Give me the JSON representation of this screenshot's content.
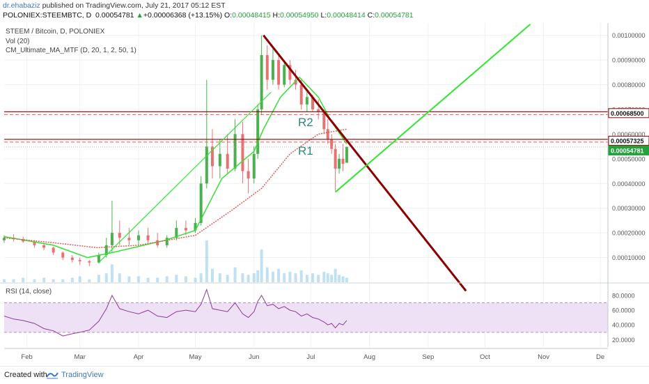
{
  "header": {
    "author": "dr.ehabaziz",
    "published_text": " published on TradingView.com, July 21, 2017 05:12 EST",
    "symbol_line": "POLONIEX:STEEMBTC, D",
    "last_price": "0.00054781",
    "change_arrow": "▲",
    "change": "+0.00006368 (+13.15%)",
    "o_label": "O:",
    "o_value": "0.00048415",
    "h_label": "H:",
    "h_value": "0.00054950",
    "l_label": "L:",
    "l_value": "0.00048414",
    "c_label": "C:",
    "c_value": "0.00054781"
  },
  "legend": {
    "title": "STEEM / Bitcoin, D, POLONIEX",
    "vol": "Vol (20)",
    "indicator": "CM_Ultimate_MA_MTF (D, 20, 1, 2, 50, 1)"
  },
  "rsi_legend": "RSI (14, close)",
  "footer": {
    "created": "Created with",
    "brand": "TradingView"
  },
  "colors": {
    "up_candle": "#4caf50",
    "down_candle": "#e57373",
    "sma20": "#33e033",
    "ma50": "#e05a5a",
    "trend_red": "#8b0000",
    "trend_green": "#2ee62e",
    "volume": "#8ec9ea",
    "rsi_line": "#8e3a97",
    "rsi_band": "#efe1f5",
    "resistance": "#8b0000",
    "label": "#2e8b7a"
  },
  "chart_data": [
    {
      "type": "candlestick",
      "title": "STEEM / Bitcoin, D, POLONIEX",
      "y_axis_scale": "linear",
      "ylim": [
        0,
        0.00105
      ],
      "y_ticks": [
        "0.00010000",
        "0.00020000",
        "0.00030000",
        "0.00040000",
        "0.00050000",
        "0.00060000",
        "0.00070000",
        "0.00080000",
        "0.00090000",
        "0.00100000"
      ],
      "x_ticks": [
        "Feb",
        "Mar",
        "Apr",
        "May",
        "Jun",
        "Jul",
        "Aug",
        "Sep",
        "Oct",
        "Nov",
        "De"
      ],
      "x_range": [
        "2017-01-20",
        "2017-12-05"
      ],
      "x_tick_dates": [
        "2017-02-01",
        "2017-03-01",
        "2017-04-01",
        "2017-05-01",
        "2017-06-01",
        "2017-07-01",
        "2017-08-01",
        "2017-09-01",
        "2017-10-01",
        "2017-11-01",
        "2017-12-01"
      ],
      "candles": [
        {
          "date": "2017-01-20",
          "o": 0.00017,
          "h": 0.00019,
          "l": 0.00016,
          "c": 0.00018
        },
        {
          "date": "2017-01-25",
          "o": 0.00018,
          "h": 0.000195,
          "l": 0.000165,
          "c": 0.000175
        },
        {
          "date": "2017-01-30",
          "o": 0.000175,
          "h": 0.000185,
          "l": 0.00016,
          "c": 0.000165
        },
        {
          "date": "2017-02-05",
          "o": 0.000165,
          "h": 0.00017,
          "l": 0.00014,
          "c": 0.00015
        },
        {
          "date": "2017-02-10",
          "o": 0.00015,
          "h": 0.00016,
          "l": 0.00013,
          "c": 0.00014
        },
        {
          "date": "2017-02-15",
          "o": 0.00014,
          "h": 0.000145,
          "l": 0.00011,
          "c": 0.00012
        },
        {
          "date": "2017-02-20",
          "o": 0.00012,
          "h": 0.000125,
          "l": 9e-05,
          "c": 0.0001
        },
        {
          "date": "2017-02-25",
          "o": 0.0001,
          "h": 0.00011,
          "l": 8e-05,
          "c": 9e-05
        },
        {
          "date": "2017-03-01",
          "o": 9e-05,
          "h": 0.0001,
          "l": 7e-05,
          "c": 8.5e-05
        },
        {
          "date": "2017-03-06",
          "o": 8.5e-05,
          "h": 9e-05,
          "l": 6.5e-05,
          "c": 8e-05
        },
        {
          "date": "2017-03-11",
          "o": 8e-05,
          "h": 0.00012,
          "l": 7.5e-05,
          "c": 0.00011
        },
        {
          "date": "2017-03-15",
          "o": 0.00011,
          "h": 0.00018,
          "l": 0.0001,
          "c": 0.00015
        },
        {
          "date": "2017-03-18",
          "o": 0.00015,
          "h": 0.00033,
          "l": 0.00012,
          "c": 0.0002
        },
        {
          "date": "2017-03-22",
          "o": 0.0002,
          "h": 0.00025,
          "l": 0.00015,
          "c": 0.00018
        },
        {
          "date": "2017-03-27",
          "o": 0.00018,
          "h": 0.00022,
          "l": 0.00015,
          "c": 0.00017
        },
        {
          "date": "2017-04-01",
          "o": 0.00017,
          "h": 0.00021,
          "l": 0.00015,
          "c": 0.00019
        },
        {
          "date": "2017-04-06",
          "o": 0.00019,
          "h": 0.00022,
          "l": 0.00016,
          "c": 0.00017
        },
        {
          "date": "2017-04-11",
          "o": 0.00017,
          "h": 0.0002,
          "l": 0.00014,
          "c": 0.00015
        },
        {
          "date": "2017-04-16",
          "o": 0.00015,
          "h": 0.00019,
          "l": 0.00014,
          "c": 0.00018
        },
        {
          "date": "2017-04-21",
          "o": 0.00018,
          "h": 0.00025,
          "l": 0.00017,
          "c": 0.00022
        },
        {
          "date": "2017-04-26",
          "o": 0.00022,
          "h": 0.00025,
          "l": 0.00019,
          "c": 0.00021
        },
        {
          "date": "2017-05-01",
          "o": 0.00021,
          "h": 0.00026,
          "l": 0.0002,
          "c": 0.00024
        },
        {
          "date": "2017-05-04",
          "o": 0.00024,
          "h": 0.00043,
          "l": 0.00023,
          "c": 0.0004
        },
        {
          "date": "2017-05-07",
          "o": 0.0004,
          "h": 0.00082,
          "l": 0.00038,
          "c": 0.00055
        },
        {
          "date": "2017-05-10",
          "o": 0.00055,
          "h": 0.00062,
          "l": 0.00042,
          "c": 0.00047
        },
        {
          "date": "2017-05-14",
          "o": 0.00047,
          "h": 0.00058,
          "l": 0.00042,
          "c": 0.00052
        },
        {
          "date": "2017-05-18",
          "o": 0.00052,
          "h": 0.0006,
          "l": 0.00044,
          "c": 0.00046
        },
        {
          "date": "2017-05-22",
          "o": 0.00046,
          "h": 0.00066,
          "l": 0.00045,
          "c": 0.0006
        },
        {
          "date": "2017-05-26",
          "o": 0.0006,
          "h": 0.00065,
          "l": 0.0004,
          "c": 0.00045
        },
        {
          "date": "2017-05-29",
          "o": 0.00045,
          "h": 0.0005,
          "l": 0.00036,
          "c": 0.00042
        },
        {
          "date": "2017-06-01",
          "o": 0.00042,
          "h": 0.00055,
          "l": 0.0004,
          "c": 0.00052
        },
        {
          "date": "2017-06-03",
          "o": 0.00052,
          "h": 0.00072,
          "l": 0.0005,
          "c": 0.0007
        },
        {
          "date": "2017-06-05",
          "o": 0.0007,
          "h": 0.001,
          "l": 0.00068,
          "c": 0.00092
        },
        {
          "date": "2017-06-08",
          "o": 0.00092,
          "h": 0.00096,
          "l": 0.00078,
          "c": 0.00082
        },
        {
          "date": "2017-06-11",
          "o": 0.00082,
          "h": 0.00095,
          "l": 0.0008,
          "c": 0.0009
        },
        {
          "date": "2017-06-14",
          "o": 0.0009,
          "h": 0.00092,
          "l": 0.00078,
          "c": 0.0008
        },
        {
          "date": "2017-06-17",
          "o": 0.0008,
          "h": 0.0009,
          "l": 0.00079,
          "c": 0.00088
        },
        {
          "date": "2017-06-20",
          "o": 0.00088,
          "h": 0.0009,
          "l": 0.0008,
          "c": 0.00082
        },
        {
          "date": "2017-06-23",
          "o": 0.00082,
          "h": 0.00086,
          "l": 0.00078,
          "c": 0.0008
        },
        {
          "date": "2017-06-26",
          "o": 0.0008,
          "h": 0.00082,
          "l": 0.0007,
          "c": 0.00072
        },
        {
          "date": "2017-06-29",
          "o": 0.00072,
          "h": 0.00078,
          "l": 0.00069,
          "c": 0.00075
        },
        {
          "date": "2017-07-02",
          "o": 0.00075,
          "h": 0.00076,
          "l": 0.00069,
          "c": 0.0007
        },
        {
          "date": "2017-07-05",
          "o": 0.0007,
          "h": 0.00074,
          "l": 0.00066,
          "c": 0.00069
        },
        {
          "date": "2017-07-08",
          "o": 0.00069,
          "h": 0.0007,
          "l": 0.0006,
          "c": 0.00062
        },
        {
          "date": "2017-07-10",
          "o": 0.00062,
          "h": 0.00066,
          "l": 0.00056,
          "c": 0.00058
        },
        {
          "date": "2017-07-12",
          "o": 0.00058,
          "h": 0.0006,
          "l": 0.00052,
          "c": 0.00054
        },
        {
          "date": "2017-07-14",
          "o": 0.00054,
          "h": 0.00056,
          "l": 0.00037,
          "c": 0.00046
        },
        {
          "date": "2017-07-16",
          "o": 0.00046,
          "h": 0.00052,
          "l": 0.00044,
          "c": 0.0005
        },
        {
          "date": "2017-07-18",
          "o": 0.0005,
          "h": 0.00056,
          "l": 0.00045,
          "c": 0.00048
        },
        {
          "date": "2017-07-20",
          "o": 0.000484,
          "h": 0.00055,
          "l": 0.000484,
          "c": 0.000548
        }
      ],
      "moving_averages": [
        {
          "points": [
            [
              "2017-01-20",
              0.000185
            ],
            [
              "2017-02-15",
              0.00015
            ],
            [
              "2017-03-05",
              0.0001
            ],
            [
              "2017-03-18",
              0.00012
            ],
            [
              "2017-04-15",
              0.00017
            ],
            [
              "2017-05-01",
              0.00021
            ],
            [
              "2017-05-07",
              0.0003
            ],
            [
              "2017-05-15",
              0.00042
            ],
            [
              "2017-06-01",
              0.00053
            ],
            [
              "2017-06-06",
              0.00062
            ],
            [
              "2017-06-15",
              0.00075
            ],
            [
              "2017-06-25",
              0.00083
            ],
            [
              "2017-07-05",
              0.00075
            ],
            [
              "2017-07-12",
              0.00065
            ],
            [
              "2017-07-20",
              0.00056
            ]
          ]
        },
        {
          "points": [
            [
              "2017-01-20",
              0.00018
            ],
            [
              "2017-02-15",
              0.00016
            ],
            [
              "2017-03-10",
              0.00014
            ],
            [
              "2017-04-01",
              0.00015
            ],
            [
              "2017-05-01",
              0.00019
            ],
            [
              "2017-05-20",
              0.00029
            ],
            [
              "2017-06-05",
              0.00038
            ],
            [
              "2017-06-20",
              0.00052
            ],
            [
              "2017-07-05",
              0.0006
            ],
            [
              "2017-07-20",
              0.00062
            ]
          ]
        }
      ],
      "volume": [
        2,
        2,
        3,
        2,
        3,
        2,
        2,
        3,
        4,
        2,
        5,
        6,
        12,
        6,
        4,
        4,
        3,
        3,
        4,
        5,
        4,
        3,
        6,
        28,
        9,
        6,
        5,
        10,
        6,
        5,
        6,
        8,
        22,
        10,
        7,
        9,
        6,
        7,
        6,
        8,
        5,
        6,
        5,
        7,
        6,
        5,
        9,
        5,
        4,
        3
      ],
      "horizontal_levels": [
        0.000685,
        0.0005732
      ],
      "price_labels": [
        "0.00068500",
        "0.00057325",
        "0.00054781"
      ],
      "annotations": [
        "R2",
        "R1"
      ],
      "trendlines": [
        {
          "from": [
            "2017-06-06",
            0.001
          ],
          "to": [
            "2017-09-21",
            -3.5e-05
          ]
        },
        {
          "from": [
            "2017-07-14",
            0.000365
          ],
          "to": [
            "2017-10-25",
            0.001045
          ]
        },
        {
          "from": [
            "2017-03-11",
            8e-05
          ],
          "to": [
            "2017-06-10",
            0.00077
          ]
        }
      ]
    },
    {
      "type": "line",
      "title": "RSI (14, close)",
      "ylim": [
        10,
        95
      ],
      "y_ticks": [
        "20.0000",
        "40.0000",
        "60.0000",
        "80.0000"
      ],
      "band": [
        30,
        70
      ],
      "x": [
        "2017-01-20",
        "2017-01-25",
        "2017-01-30",
        "2017-02-05",
        "2017-02-10",
        "2017-02-15",
        "2017-02-20",
        "2017-02-25",
        "2017-03-01",
        "2017-03-06",
        "2017-03-11",
        "2017-03-15",
        "2017-03-18",
        "2017-03-22",
        "2017-03-27",
        "2017-04-01",
        "2017-04-06",
        "2017-04-11",
        "2017-04-16",
        "2017-04-21",
        "2017-04-26",
        "2017-05-01",
        "2017-05-04",
        "2017-05-07",
        "2017-05-10",
        "2017-05-14",
        "2017-05-18",
        "2017-05-22",
        "2017-05-26",
        "2017-05-29",
        "2017-06-01",
        "2017-06-03",
        "2017-06-05",
        "2017-06-08",
        "2017-06-11",
        "2017-06-14",
        "2017-06-17",
        "2017-06-20",
        "2017-06-23",
        "2017-06-26",
        "2017-06-29",
        "2017-07-02",
        "2017-07-05",
        "2017-07-08",
        "2017-07-10",
        "2017-07-12",
        "2017-07-14",
        "2017-07-16",
        "2017-07-18",
        "2017-07-20"
      ],
      "values": [
        52,
        48,
        46,
        42,
        35,
        32,
        25,
        28,
        30,
        33,
        45,
        62,
        80,
        62,
        58,
        55,
        60,
        52,
        50,
        58,
        60,
        58,
        68,
        88,
        62,
        60,
        58,
        70,
        55,
        50,
        58,
        72,
        80,
        66,
        68,
        62,
        65,
        60,
        58,
        52,
        55,
        50,
        48,
        44,
        40,
        42,
        36,
        42,
        40,
        46
      ]
    }
  ]
}
